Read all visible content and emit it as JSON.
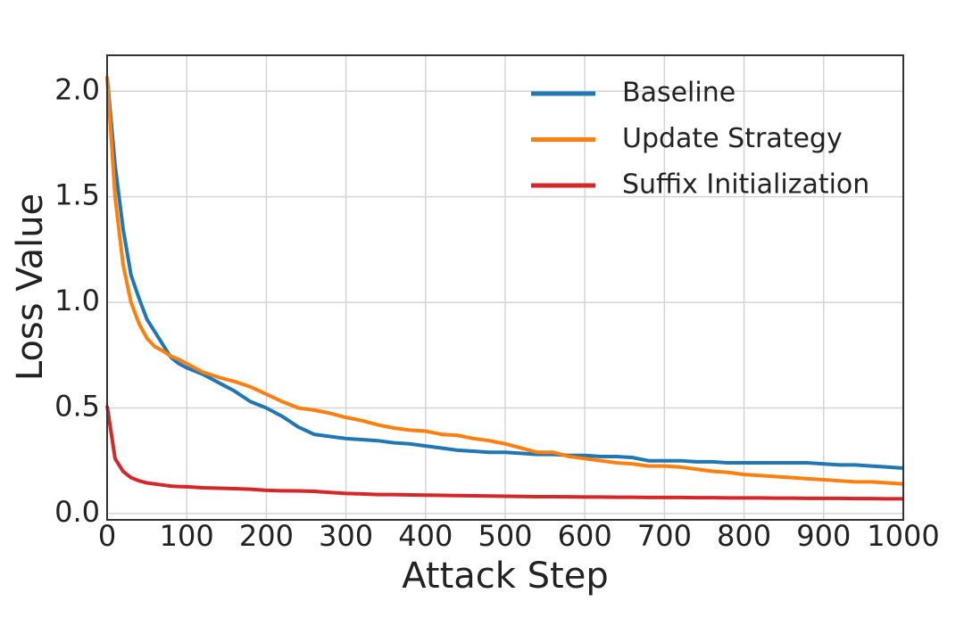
{
  "chart_data": {
    "type": "line",
    "x_label": "Attack Step",
    "y_label": "Loss Value",
    "x": [
      0,
      10,
      20,
      30,
      40,
      50,
      60,
      70,
      80,
      90,
      100,
      120,
      140,
      160,
      180,
      200,
      220,
      240,
      260,
      280,
      300,
      320,
      340,
      360,
      380,
      400,
      420,
      440,
      460,
      480,
      500,
      520,
      540,
      560,
      580,
      600,
      620,
      640,
      660,
      680,
      700,
      720,
      740,
      760,
      780,
      800,
      820,
      840,
      860,
      880,
      900,
      920,
      940,
      960,
      980,
      1000
    ],
    "series": [
      {
        "name": "Baseline",
        "color": "#1f77b4",
        "values": [
          2.07,
          1.65,
          1.35,
          1.13,
          1.02,
          0.92,
          0.86,
          0.8,
          0.74,
          0.71,
          0.69,
          0.66,
          0.62,
          0.58,
          0.53,
          0.5,
          0.46,
          0.41,
          0.375,
          0.365,
          0.355,
          0.35,
          0.345,
          0.335,
          0.33,
          0.32,
          0.31,
          0.3,
          0.295,
          0.29,
          0.29,
          0.285,
          0.28,
          0.28,
          0.275,
          0.275,
          0.27,
          0.27,
          0.265,
          0.25,
          0.25,
          0.25,
          0.245,
          0.245,
          0.24,
          0.24,
          0.24,
          0.24,
          0.24,
          0.24,
          0.235,
          0.23,
          0.23,
          0.225,
          0.22,
          0.215
        ]
      },
      {
        "name": "Update Strategy",
        "color": "#ff7f0e",
        "values": [
          2.07,
          1.5,
          1.18,
          1.0,
          0.9,
          0.83,
          0.79,
          0.77,
          0.745,
          0.73,
          0.71,
          0.67,
          0.645,
          0.625,
          0.6,
          0.565,
          0.53,
          0.5,
          0.49,
          0.475,
          0.455,
          0.44,
          0.42,
          0.405,
          0.395,
          0.39,
          0.375,
          0.37,
          0.355,
          0.345,
          0.33,
          0.31,
          0.29,
          0.29,
          0.27,
          0.26,
          0.25,
          0.24,
          0.235,
          0.225,
          0.225,
          0.22,
          0.21,
          0.2,
          0.195,
          0.185,
          0.18,
          0.175,
          0.17,
          0.165,
          0.16,
          0.155,
          0.15,
          0.15,
          0.145,
          0.14
        ]
      },
      {
        "name": "Suffix Initialization",
        "color": "#d62728",
        "values": [
          0.51,
          0.26,
          0.2,
          0.17,
          0.155,
          0.145,
          0.14,
          0.135,
          0.13,
          0.128,
          0.127,
          0.122,
          0.12,
          0.118,
          0.115,
          0.11,
          0.108,
          0.107,
          0.105,
          0.1,
          0.095,
          0.093,
          0.09,
          0.09,
          0.088,
          0.087,
          0.086,
          0.085,
          0.084,
          0.083,
          0.082,
          0.081,
          0.08,
          0.08,
          0.079,
          0.078,
          0.078,
          0.077,
          0.077,
          0.076,
          0.076,
          0.076,
          0.075,
          0.075,
          0.074,
          0.074,
          0.074,
          0.073,
          0.073,
          0.072,
          0.072,
          0.072,
          0.071,
          0.071,
          0.07,
          0.07
        ]
      }
    ],
    "xlim": [
      0,
      1000
    ],
    "xticks": [
      0,
      100,
      200,
      300,
      400,
      500,
      600,
      700,
      800,
      900,
      1000
    ],
    "ylim": [
      -0.03,
      2.17
    ],
    "yticks": [
      {
        "value": 0,
        "label": "0.0"
      },
      0.5,
      {
        "value": 1,
        "label": "1.0"
      },
      1.5,
      {
        "value": 2,
        "label": "2.0"
      }
    ],
    "grid": true,
    "legend": "upper right"
  }
}
